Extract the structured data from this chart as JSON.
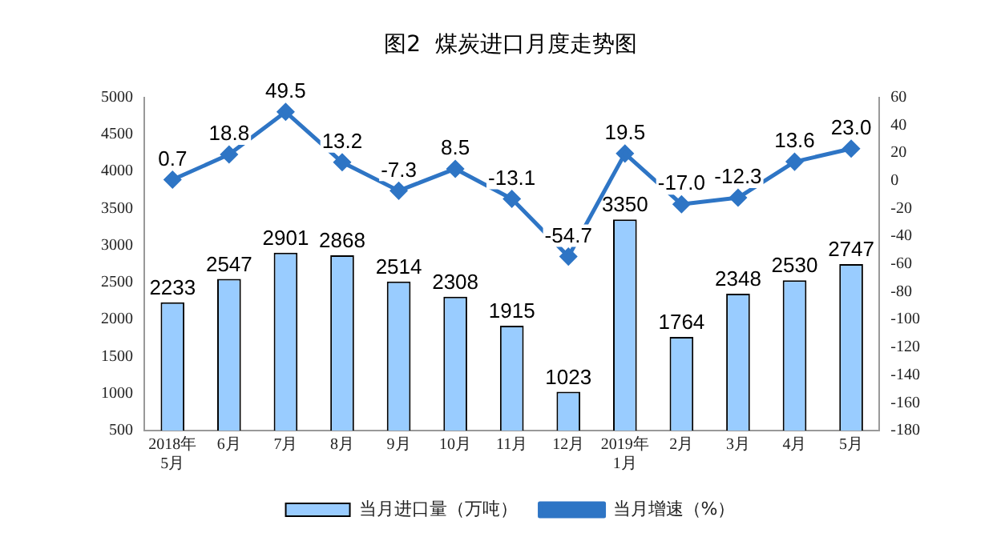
{
  "chart_data": {
    "type": "bar",
    "title": "图2  煤炭进口月度走势图",
    "categories": [
      "2018年\n5月",
      "6月",
      "7月",
      "8月",
      "9月",
      "10月",
      "11月",
      "12月",
      "2019年\n1月",
      "2月",
      "3月",
      "4月",
      "5月"
    ],
    "series": [
      {
        "name": "当月进口量（万吨）",
        "color": "#99ccff",
        "values": [
          2233,
          2547,
          2901,
          2868,
          2514,
          2308,
          1915,
          1023,
          3350,
          1764,
          2348,
          2530,
          2747
        ]
      },
      {
        "name": "当月增速（%）",
        "type": "line",
        "axis": "y2",
        "color": "#2e75c5",
        "marker": "diamond",
        "values": [
          0.7,
          18.8,
          49.5,
          13.2,
          -7.3,
          8.5,
          -13.1,
          -54.7,
          19.5,
          -17.0,
          -12.3,
          13.6,
          23.0
        ],
        "value_labels": [
          "0.7",
          "18.8",
          "49.5",
          "13.2",
          "-7.3",
          "8.5",
          "-13.1",
          "-54.7",
          "19.5",
          "-17.0",
          "-12.3",
          "13.6",
          "23.0"
        ]
      }
    ],
    "ylim": [
      500,
      5000
    ],
    "yticks": [
      500,
      1000,
      1500,
      2000,
      2500,
      3000,
      3500,
      4000,
      4500,
      5000
    ],
    "y2lim": [
      -180,
      60
    ],
    "y2ticks": [
      -180,
      -160,
      -140,
      -120,
      -100,
      -80,
      -60,
      -40,
      -20,
      0,
      20,
      40,
      60
    ],
    "data_labels": true,
    "grid": false,
    "legend": "bottom"
  }
}
